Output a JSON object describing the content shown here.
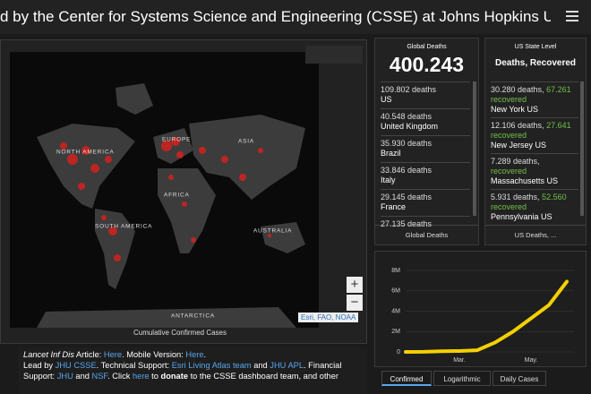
{
  "header": {
    "title": "d by the Center for Systems Science and Engineering (CSSE) at Johns Hopkins Un..."
  },
  "map": {
    "labels": [
      "NORTH AMERICA",
      "SOUTH AMERICA",
      "EUROPE",
      "ASIA",
      "AFRICA",
      "AUSTRALIA",
      "ANTARCTICA"
    ],
    "attribution": "Esri, FAO, NOAA",
    "caption": "Cumulative Confirmed Cases"
  },
  "global": {
    "title": "Global Deaths",
    "total": "400.243",
    "items": [
      {
        "deaths": "109.802 deaths",
        "place": "US"
      },
      {
        "deaths": "40.548 deaths",
        "place": "United Kingdom"
      },
      {
        "deaths": "35.930 deaths",
        "place": "Brazil"
      },
      {
        "deaths": "33.846 deaths",
        "place": "Italy"
      },
      {
        "deaths": "29.145 deaths",
        "place": "France"
      },
      {
        "deaths": "27.135 deaths"
      }
    ],
    "footer": "Global Deaths"
  },
  "us": {
    "title": "US State Level",
    "subtitle": "Deaths, Recovered",
    "items": [
      {
        "deaths": "30.280 deaths,",
        "recovered": "67.261",
        "recovered_label": "recovered",
        "place": "New York US"
      },
      {
        "deaths": "12.106 deaths,",
        "recovered": "27.641",
        "recovered_label": "recovered",
        "place": "New Jersey US"
      },
      {
        "deaths": "7.289 deaths,",
        "recovered_label": "recovered",
        "place": "Massachusetts US"
      },
      {
        "deaths": "5.931 deaths,",
        "recovered": "52.560",
        "recovered_label": "recovered",
        "place": "Pennsylvania US"
      }
    ],
    "footer": "US Deaths, ..."
  },
  "chart_data": {
    "type": "line",
    "categories": [
      null,
      null,
      null,
      "Mar.",
      null,
      null,
      null,
      "May.",
      null,
      null
    ],
    "series": [
      {
        "color": "#f5d000",
        "values": [
          0,
          10000,
          70000,
          90000,
          170000,
          930000,
          2000000,
          3300000,
          4600000,
          6900000
        ]
      }
    ],
    "ylim": [
      0,
      8000000
    ],
    "yticks": [
      0,
      {
        "value": 2000000,
        "label": "2M"
      },
      {
        "value": 4000000,
        "label": "4M"
      },
      {
        "value": 6000000,
        "label": "6M"
      },
      {
        "value": 8000000,
        "label": "8M"
      }
    ],
    "grid": true,
    "tabs": [
      "Confirmed",
      "Logarithmic",
      "Daily Cases"
    ]
  },
  "info": {
    "lines": [
      [
        {
          "text": "Lancet Inf Dis",
          "italic": true
        },
        {
          "text": " Article: "
        },
        {
          "text": "Here",
          "link": true
        },
        {
          "text": ". Mobile Version: "
        },
        {
          "text": "Here",
          "link": true
        },
        {
          "text": "."
        }
      ],
      [
        {
          "text": "Lead by "
        },
        {
          "text": "JHU CSSE",
          "link": true
        },
        {
          "text": ". Technical Support: "
        },
        {
          "text": "Esri Living Atlas team",
          "link": true
        },
        {
          "text": " and "
        },
        {
          "text": "JHU APL",
          "link": true
        },
        {
          "text": ". Financial"
        }
      ],
      [
        {
          "text": "Support: "
        },
        {
          "text": "JHU",
          "link": true
        },
        {
          "text": " and "
        },
        {
          "text": "NSF",
          "link": true
        },
        {
          "text": ". Click "
        },
        {
          "text": "here",
          "link": true
        },
        {
          "text": " to "
        },
        {
          "text": "donate",
          "bold": true
        },
        {
          "text": " to the CSSE dashboard team, and other"
        }
      ]
    ]
  }
}
